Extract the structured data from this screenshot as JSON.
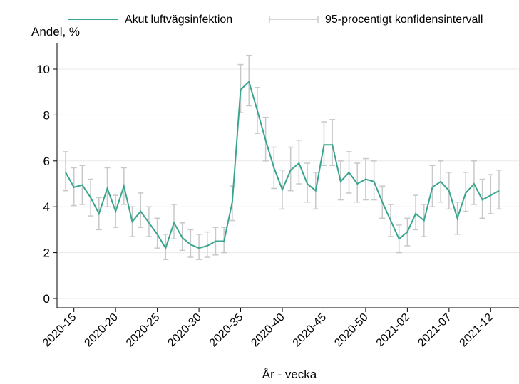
{
  "chart_data": {
    "type": "line",
    "y_label": "Andel, %",
    "x_label": "År - vecka",
    "categories": [
      null,
      "2020-15",
      null,
      null,
      null,
      null,
      "2020-20",
      null,
      null,
      null,
      null,
      "2020-25",
      null,
      null,
      null,
      null,
      "2020-30",
      null,
      null,
      null,
      null,
      "2020-35",
      null,
      null,
      null,
      null,
      "2020-40",
      null,
      null,
      null,
      null,
      "2020-45",
      null,
      null,
      null,
      null,
      "2020-50",
      null,
      null,
      null,
      null,
      "2021-02",
      null,
      null,
      null,
      null,
      "2021-07",
      null,
      null,
      null,
      null,
      "2021-12",
      null
    ],
    "series": [
      {
        "name": "Akut luftvägsinfektion",
        "color": "#3aa58e",
        "values": [
          5.5,
          4.85,
          4.95,
          4.4,
          3.7,
          4.8,
          3.8,
          4.9,
          3.35,
          3.8,
          3.3,
          2.8,
          2.2,
          3.3,
          2.65,
          2.35,
          2.2,
          2.3,
          2.5,
          2.5,
          4.2,
          9.1,
          9.45,
          8.2,
          6.9,
          5.7,
          4.75,
          5.6,
          5.9,
          5.0,
          4.7,
          6.7,
          6.7,
          5.1,
          5.5,
          5.0,
          5.2,
          5.1,
          4.2,
          3.4,
          2.6,
          2.9,
          3.7,
          3.4,
          4.85,
          5.1,
          4.7,
          3.5,
          4.6,
          5.0,
          4.3,
          4.5,
          4.7
        ],
        "lower": [
          4.7,
          4.05,
          4.1,
          3.6,
          3.0,
          4.0,
          3.1,
          4.1,
          2.7,
          3.1,
          2.7,
          2.2,
          1.7,
          2.6,
          2.1,
          1.8,
          1.7,
          1.8,
          1.9,
          2.0,
          3.4,
          8.1,
          8.4,
          7.2,
          6.0,
          4.8,
          3.9,
          4.7,
          5.0,
          4.2,
          3.9,
          5.8,
          5.8,
          4.3,
          4.6,
          4.2,
          4.3,
          4.3,
          3.5,
          2.7,
          2.0,
          2.3,
          3.0,
          2.7,
          4.0,
          4.2,
          3.9,
          2.8,
          3.8,
          4.1,
          3.5,
          3.7,
          3.9
        ],
        "upper": [
          6.4,
          5.7,
          5.8,
          5.2,
          4.4,
          5.7,
          4.5,
          5.7,
          4.0,
          4.6,
          4.0,
          3.5,
          2.8,
          4.1,
          3.3,
          3.0,
          2.8,
          2.9,
          3.1,
          3.1,
          4.9,
          10.2,
          10.6,
          9.2,
          7.9,
          6.6,
          5.6,
          6.6,
          6.9,
          5.9,
          5.5,
          7.7,
          7.8,
          6.0,
          6.4,
          5.9,
          6.1,
          6.0,
          4.9,
          4.1,
          3.2,
          3.5,
          4.5,
          4.1,
          5.8,
          6.0,
          5.5,
          4.2,
          5.5,
          6.0,
          5.2,
          5.4,
          5.6
        ]
      }
    ],
    "ci": {
      "name": "95-procentigt konfidensintervall",
      "color": "#c8c8c8"
    },
    "ylim": [
      0,
      10
    ],
    "yticks": [
      0,
      2,
      4,
      6,
      8,
      10
    ],
    "grid": true
  }
}
